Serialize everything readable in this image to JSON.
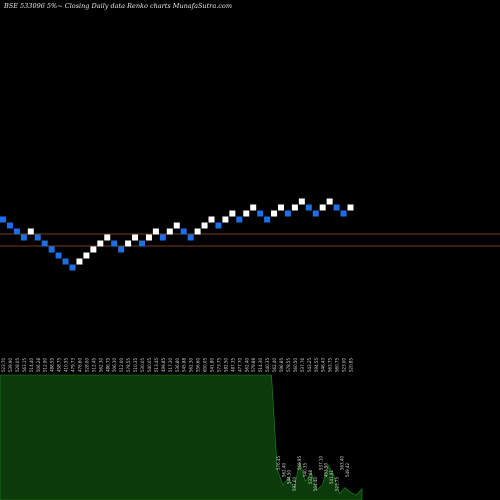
{
  "header": {
    "title": "BSE 533096  5%~  Closing Daily data  Renko  charts MunafaSutra.com"
  },
  "colors": {
    "background": "#000000",
    "up_brick": "#ffffff",
    "down_brick": "#1e6ee6",
    "reference_line": "#a0522d",
    "volume_fill": "#0b3a0b",
    "volume_stroke": "#1e8a1e"
  },
  "chart_data": [
    {
      "type": "renko",
      "title": "BSE 533096  5%~  Closing Daily data  Renko  charts MunafaSutra.com",
      "brick_directions": [
        "d",
        "d",
        "d",
        "d",
        "u",
        "d",
        "d",
        "d",
        "d",
        "d",
        "d",
        "u",
        "u",
        "u",
        "u",
        "u",
        "d",
        "d",
        "u",
        "u",
        "d",
        "u",
        "u",
        "d",
        "u",
        "u",
        "d",
        "d",
        "u",
        "u",
        "u",
        "d",
        "u",
        "u",
        "d",
        "u",
        "u",
        "d",
        "d",
        "u",
        "u",
        "d",
        "u",
        "u",
        "d",
        "d",
        "u",
        "u",
        "d",
        "d",
        "u"
      ],
      "brick_levels": [
        0,
        -1,
        -2,
        -3,
        -2,
        -3,
        -4,
        -5,
        -6,
        -7,
        -8,
        -7,
        -6,
        -5,
        -4,
        -3,
        -4,
        -5,
        -4,
        -3,
        -4,
        -3,
        -2,
        -3,
        -2,
        -1,
        -2,
        -3,
        -2,
        -1,
        0,
        -1,
        0,
        1,
        0,
        1,
        2,
        1,
        0,
        1,
        2,
        1,
        2,
        3,
        2,
        1,
        2,
        3,
        2,
        1,
        2
      ],
      "reference_lines": 2,
      "brick_price_labels": [
        "523.70",
        "539.90",
        "528.05",
        "563.15",
        "514.40",
        "506.28",
        "512.90",
        "488.55",
        "458.75",
        "410.55",
        "479.73",
        "476.60",
        "528.00",
        "512.45",
        "562.30",
        "486.75",
        "506.30",
        "512.00",
        "578.55",
        "510.35",
        "530.05",
        "540.05",
        "513.45",
        "499.85",
        "517.30",
        "536.80",
        "545.88",
        "562.30",
        "556.60",
        "600.05",
        "541.80",
        "573.75",
        "582.50",
        "487.35",
        "477.70",
        "562.40",
        "579.88",
        "514.30",
        "540.35",
        "562.40",
        "596.85",
        "578.55",
        "560.50",
        "537.76",
        "543.25",
        "594.55",
        "546.43",
        "563.75",
        "560.75",
        "523.00",
        "520.85"
      ],
      "volume_price_labels": [
        "576.45",
        "562.40",
        "544.50",
        "592.60",
        "569.95",
        "540.35",
        "532.08",
        "504.40",
        "537.10",
        "453.90",
        "541.91",
        "523.75",
        "563.40",
        "549.42"
      ]
    },
    {
      "type": "area",
      "volume_relative": [
        1,
        1,
        1,
        1,
        1,
        1,
        1,
        1,
        1,
        1,
        1,
        1,
        1,
        1,
        1,
        1,
        1,
        1,
        1,
        1,
        1,
        1,
        1,
        1,
        1,
        1,
        1,
        1,
        1,
        1,
        1,
        1,
        1,
        1,
        1,
        1,
        1,
        1,
        1,
        1,
        1,
        1,
        1,
        1,
        1,
        1,
        1,
        1,
        1,
        0.25,
        0.12,
        0.18,
        0.1,
        0.3,
        0.15,
        0.22,
        0.08,
        0.12,
        0.28,
        0.2,
        0.05,
        0.1,
        0.06,
        0.04,
        0.09
      ]
    }
  ]
}
